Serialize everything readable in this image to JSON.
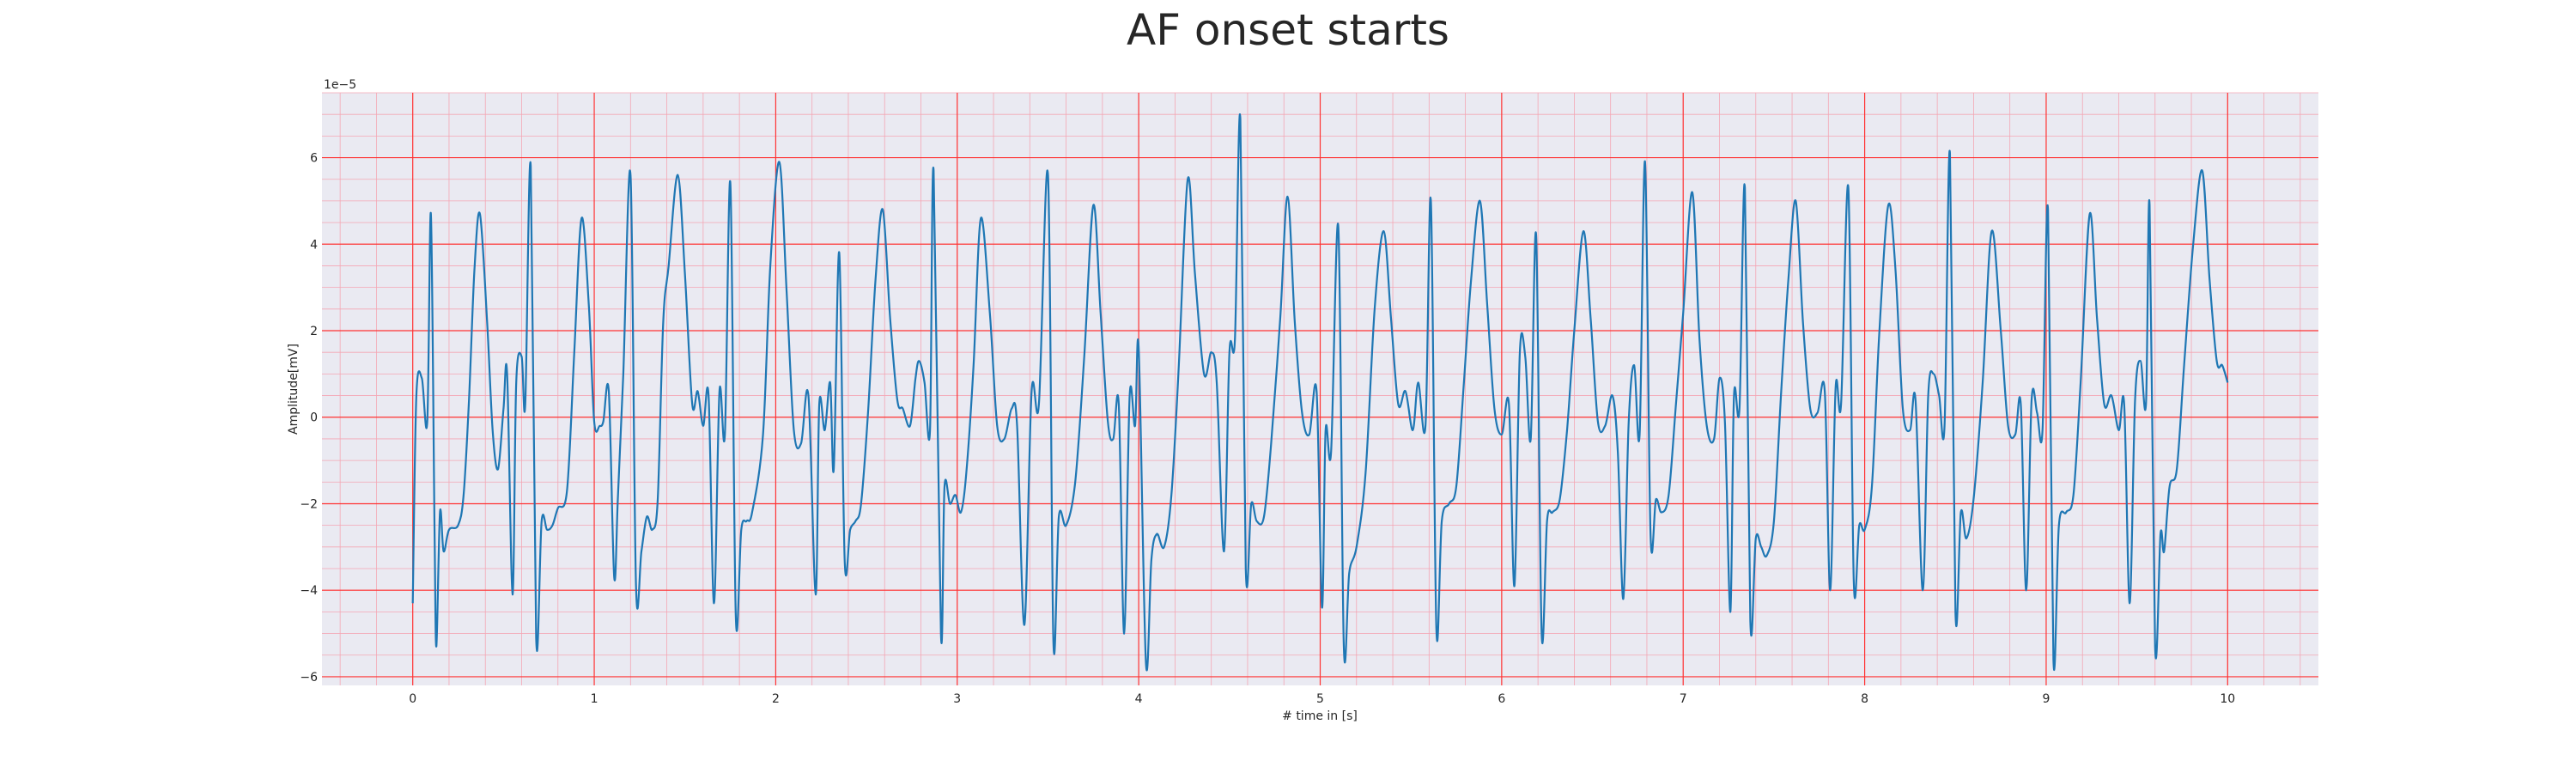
{
  "chart_data": {
    "type": "line",
    "title": "AF onset starts",
    "xlabel": "# time in [s]",
    "ylabel": "Amplitude[mV]",
    "y_scale_label": "1e−5",
    "xlim": [
      -0.5,
      10.5
    ],
    "ylim": [
      -6.2,
      7.5
    ],
    "x_ticks": [
      0,
      1,
      2,
      3,
      4,
      5,
      6,
      7,
      8,
      9,
      10
    ],
    "x_tick_labels": [
      "0",
      "1",
      "2",
      "3",
      "4",
      "5",
      "6",
      "7",
      "8",
      "9",
      "10"
    ],
    "y_ticks": [
      -6,
      -4,
      -2,
      0,
      2,
      4,
      6
    ],
    "y_tick_labels": [
      "−6",
      "−4",
      "−2",
      "0",
      "2",
      "4",
      "6"
    ],
    "grid": true,
    "minor_grid": true,
    "colors": {
      "background": "#eaeaf2",
      "major_grid": "#ff3333",
      "minor_grid": "#f4a6b4",
      "line": "#1f77b4"
    },
    "series": [
      {
        "points": [
          [
            0.0,
            -4.3
          ],
          [
            0.02,
            0.5
          ],
          [
            0.05,
            0.9
          ],
          [
            0.08,
            -0.1
          ],
          [
            0.1,
            4.7
          ],
          [
            0.12,
            -2.5
          ],
          [
            0.13,
            -5.3
          ],
          [
            0.15,
            -2.2
          ],
          [
            0.17,
            -3.1
          ],
          [
            0.2,
            -2.6
          ],
          [
            0.25,
            -2.5
          ],
          [
            0.28,
            -1.8
          ],
          [
            0.31,
            0.4
          ],
          [
            0.34,
            3.4
          ],
          [
            0.37,
            4.7
          ],
          [
            0.41,
            2.2
          ],
          [
            0.44,
            -0.3
          ],
          [
            0.47,
            -1.2
          ],
          [
            0.5,
            0.2
          ],
          [
            0.52,
            1.0
          ],
          [
            0.55,
            -4.1
          ],
          [
            0.57,
            0.8
          ],
          [
            0.6,
            1.4
          ],
          [
            0.62,
            0.3
          ],
          [
            0.65,
            5.8
          ],
          [
            0.68,
            -5.1
          ],
          [
            0.71,
            -2.4
          ],
          [
            0.74,
            -2.6
          ],
          [
            0.77,
            -2.5
          ],
          [
            0.8,
            -2.1
          ],
          [
            0.85,
            -1.7
          ],
          [
            0.89,
            1.5
          ],
          [
            0.93,
            4.6
          ],
          [
            0.97,
            2.6
          ],
          [
            1.0,
            -0.1
          ],
          [
            1.03,
            -0.2
          ],
          [
            1.05,
            -0.1
          ],
          [
            1.08,
            0.6
          ],
          [
            1.11,
            -3.7
          ],
          [
            1.13,
            -1.9
          ],
          [
            1.16,
            1.0
          ],
          [
            1.2,
            5.6
          ],
          [
            1.23,
            -3.9
          ],
          [
            1.26,
            -3.1
          ],
          [
            1.29,
            -2.3
          ],
          [
            1.32,
            -2.6
          ],
          [
            1.35,
            -1.9
          ],
          [
            1.38,
            2.2
          ],
          [
            1.41,
            3.5
          ],
          [
            1.46,
            5.6
          ],
          [
            1.5,
            3.3
          ],
          [
            1.54,
            0.3
          ],
          [
            1.57,
            0.6
          ],
          [
            1.6,
            -0.2
          ],
          [
            1.63,
            0.5
          ],
          [
            1.66,
            -4.3
          ],
          [
            1.69,
            0.6
          ],
          [
            1.72,
            -0.4
          ],
          [
            1.75,
            5.4
          ],
          [
            1.78,
            -4.6
          ],
          [
            1.81,
            -2.6
          ],
          [
            1.84,
            -2.4
          ],
          [
            1.87,
            -2.2
          ],
          [
            1.93,
            -0.4
          ],
          [
            1.97,
            3.5
          ],
          [
            2.02,
            5.9
          ],
          [
            2.06,
            2.9
          ],
          [
            2.1,
            -0.3
          ],
          [
            2.14,
            -0.6
          ],
          [
            2.18,
            0.5
          ],
          [
            2.22,
            -4.1
          ],
          [
            2.24,
            0.3
          ],
          [
            2.27,
            -0.3
          ],
          [
            2.3,
            0.8
          ],
          [
            2.32,
            -1.2
          ],
          [
            2.35,
            3.8
          ],
          [
            2.38,
            -3.3
          ],
          [
            2.41,
            -2.6
          ],
          [
            2.44,
            -2.4
          ],
          [
            2.47,
            -2.0
          ],
          [
            2.51,
            0.2
          ],
          [
            2.55,
            3.2
          ],
          [
            2.59,
            4.8
          ],
          [
            2.63,
            2.3
          ],
          [
            2.67,
            0.4
          ],
          [
            2.7,
            0.2
          ],
          [
            2.74,
            -0.2
          ],
          [
            2.77,
            0.9
          ],
          [
            2.79,
            1.3
          ],
          [
            2.82,
            0.8
          ],
          [
            2.85,
            -0.3
          ],
          [
            2.87,
            5.7
          ],
          [
            2.91,
            -5.0
          ],
          [
            2.93,
            -1.6
          ],
          [
            2.96,
            -2.0
          ],
          [
            2.99,
            -1.8
          ],
          [
            3.02,
            -2.2
          ],
          [
            3.05,
            -1.3
          ],
          [
            3.09,
            1.2
          ],
          [
            3.13,
            4.6
          ],
          [
            3.18,
            2.4
          ],
          [
            3.22,
            -0.2
          ],
          [
            3.26,
            -0.5
          ],
          [
            3.3,
            0.2
          ],
          [
            3.33,
            -0.2
          ],
          [
            3.37,
            -4.8
          ],
          [
            3.41,
            0.6
          ],
          [
            3.45,
            0.3
          ],
          [
            3.5,
            5.6
          ],
          [
            3.53,
            -5.2
          ],
          [
            3.56,
            -2.3
          ],
          [
            3.6,
            -2.5
          ],
          [
            3.65,
            -1.5
          ],
          [
            3.7,
            1.4
          ],
          [
            3.75,
            4.9
          ],
          [
            3.79,
            2.4
          ],
          [
            3.83,
            -0.1
          ],
          [
            3.86,
            -0.5
          ],
          [
            3.89,
            0.3
          ],
          [
            3.92,
            -5.0
          ],
          [
            3.95,
            0.5
          ],
          [
            3.98,
            -0.2
          ],
          [
            4.0,
            1.6
          ],
          [
            4.04,
            -5.7
          ],
          [
            4.07,
            -3.3
          ],
          [
            4.1,
            -2.7
          ],
          [
            4.14,
            -3.0
          ],
          [
            4.18,
            -1.8
          ],
          [
            4.22,
            1.1
          ],
          [
            4.27,
            5.5
          ],
          [
            4.31,
            3.3
          ],
          [
            4.36,
            1.0
          ],
          [
            4.4,
            1.5
          ],
          [
            4.43,
            0.8
          ],
          [
            4.47,
            -3.1
          ],
          [
            4.5,
            1.5
          ],
          [
            4.53,
            1.8
          ],
          [
            4.56,
            6.9
          ],
          [
            4.59,
            -3.5
          ],
          [
            4.62,
            -2.0
          ],
          [
            4.65,
            -2.4
          ],
          [
            4.69,
            -2.3
          ],
          [
            4.73,
            -0.6
          ],
          [
            4.78,
            2.3
          ],
          [
            4.82,
            5.1
          ],
          [
            4.86,
            2.2
          ],
          [
            4.9,
            0.1
          ],
          [
            4.94,
            -0.4
          ],
          [
            4.98,
            0.6
          ],
          [
            5.01,
            -4.4
          ],
          [
            5.03,
            -0.3
          ],
          [
            5.06,
            -0.8
          ],
          [
            5.1,
            4.4
          ],
          [
            5.13,
            -5.3
          ],
          [
            5.16,
            -3.6
          ],
          [
            5.2,
            -3.0
          ],
          [
            5.25,
            -1.3
          ],
          [
            5.3,
            2.5
          ],
          [
            5.35,
            4.3
          ],
          [
            5.39,
            2.3
          ],
          [
            5.43,
            0.3
          ],
          [
            5.47,
            0.6
          ],
          [
            5.51,
            -0.3
          ],
          [
            5.54,
            0.8
          ],
          [
            5.58,
            -0.2
          ],
          [
            5.61,
            5.0
          ],
          [
            5.64,
            -4.9
          ],
          [
            5.67,
            -2.4
          ],
          [
            5.71,
            -2.0
          ],
          [
            5.75,
            -1.6
          ],
          [
            5.79,
            0.7
          ],
          [
            5.83,
            3.1
          ],
          [
            5.88,
            5.0
          ],
          [
            5.92,
            2.6
          ],
          [
            5.96,
            0.2
          ],
          [
            6.0,
            -0.4
          ],
          [
            6.04,
            0.3
          ],
          [
            6.07,
            -3.9
          ],
          [
            6.1,
            1.5
          ],
          [
            6.13,
            1.4
          ],
          [
            6.16,
            -0.5
          ],
          [
            6.19,
            4.2
          ],
          [
            6.22,
            -5.0
          ],
          [
            6.25,
            -2.4
          ],
          [
            6.28,
            -2.2
          ],
          [
            6.32,
            -1.9
          ],
          [
            6.36,
            -0.3
          ],
          [
            6.4,
            2.0
          ],
          [
            6.45,
            4.3
          ],
          [
            6.49,
            2.3
          ],
          [
            6.53,
            -0.1
          ],
          [
            6.57,
            -0.2
          ],
          [
            6.61,
            0.5
          ],
          [
            6.64,
            -0.8
          ],
          [
            6.67,
            -4.2
          ],
          [
            6.7,
            -0.1
          ],
          [
            6.73,
            1.2
          ],
          [
            6.76,
            -0.4
          ],
          [
            6.79,
            5.9
          ],
          [
            6.82,
            -2.7
          ],
          [
            6.85,
            -1.9
          ],
          [
            6.88,
            -2.2
          ],
          [
            6.92,
            -1.8
          ],
          [
            6.96,
            0.3
          ],
          [
            7.0,
            2.4
          ],
          [
            7.05,
            5.2
          ],
          [
            7.09,
            1.8
          ],
          [
            7.13,
            -0.2
          ],
          [
            7.17,
            -0.5
          ],
          [
            7.2,
            0.9
          ],
          [
            7.23,
            -0.1
          ],
          [
            7.26,
            -4.5
          ],
          [
            7.28,
            0.5
          ],
          [
            7.31,
            0.2
          ],
          [
            7.34,
            5.3
          ],
          [
            7.37,
            -4.7
          ],
          [
            7.4,
            -2.8
          ],
          [
            7.43,
            -3.0
          ],
          [
            7.46,
            -3.2
          ],
          [
            7.5,
            -2.4
          ],
          [
            7.54,
            0.6
          ],
          [
            7.58,
            3.2
          ],
          [
            7.62,
            5.0
          ],
          [
            7.66,
            2.2
          ],
          [
            7.7,
            0.2
          ],
          [
            7.74,
            0.1
          ],
          [
            7.78,
            0.6
          ],
          [
            7.81,
            -4.0
          ],
          [
            7.84,
            0.7
          ],
          [
            7.87,
            0.3
          ],
          [
            7.91,
            5.3
          ],
          [
            7.94,
            -3.8
          ],
          [
            7.97,
            -2.5
          ],
          [
            8.0,
            -2.6
          ],
          [
            8.04,
            -1.6
          ],
          [
            8.08,
            1.9
          ],
          [
            8.13,
            4.9
          ],
          [
            8.17,
            3.4
          ],
          [
            8.21,
            0.2
          ],
          [
            8.25,
            -0.3
          ],
          [
            8.28,
            0.4
          ],
          [
            8.32,
            -4.0
          ],
          [
            8.35,
            0.5
          ],
          [
            8.38,
            1.0
          ],
          [
            8.41,
            0.5
          ],
          [
            8.44,
            -0.2
          ],
          [
            8.47,
            6.1
          ],
          [
            8.5,
            -4.5
          ],
          [
            8.53,
            -2.2
          ],
          [
            8.56,
            -2.8
          ],
          [
            8.6,
            -1.9
          ],
          [
            8.65,
            0.8
          ],
          [
            8.7,
            4.3
          ],
          [
            8.75,
            2.0
          ],
          [
            8.79,
            -0.2
          ],
          [
            8.83,
            -0.4
          ],
          [
            8.86,
            0.3
          ],
          [
            8.89,
            -4.0
          ],
          [
            8.92,
            0.4
          ],
          [
            8.95,
            0.1
          ],
          [
            8.98,
            -0.3
          ],
          [
            9.01,
            4.8
          ],
          [
            9.04,
            -5.6
          ],
          [
            9.07,
            -2.5
          ],
          [
            9.11,
            -2.2
          ],
          [
            9.15,
            -1.8
          ],
          [
            9.19,
            0.8
          ],
          [
            9.24,
            4.7
          ],
          [
            9.28,
            2.3
          ],
          [
            9.32,
            0.3
          ],
          [
            9.36,
            0.5
          ],
          [
            9.4,
            -0.3
          ],
          [
            9.43,
            0.3
          ],
          [
            9.46,
            -4.3
          ],
          [
            9.49,
            0.4
          ],
          [
            9.52,
            1.3
          ],
          [
            9.55,
            0.3
          ],
          [
            9.57,
            4.9
          ],
          [
            9.6,
            -5.3
          ],
          [
            9.63,
            -2.7
          ],
          [
            9.65,
            -3.1
          ],
          [
            9.68,
            -1.6
          ],
          [
            9.72,
            -1.2
          ],
          [
            9.76,
            1.2
          ],
          [
            9.81,
            4.0
          ],
          [
            9.86,
            5.7
          ],
          [
            9.9,
            3.2
          ],
          [
            9.94,
            1.3
          ],
          [
            9.97,
            1.2
          ],
          [
            10.0,
            0.8
          ]
        ]
      }
    ]
  }
}
